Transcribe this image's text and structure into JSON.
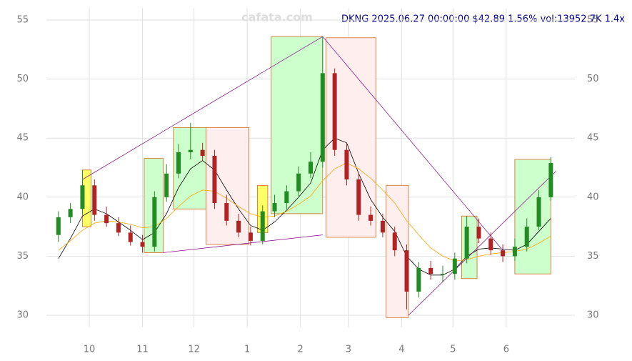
{
  "chart_data": {
    "type": "candlestick",
    "title": "DKNG 2025.06.27 00:00:00 $42.89 1.56% vol:13952.7K 1.4x",
    "watermark": "cafata.com",
    "x": [
      -18,
      -11,
      -4,
      3,
      10,
      17,
      24,
      31,
      38,
      45,
      52,
      59,
      66,
      73,
      80,
      87,
      94,
      101,
      108,
      115,
      122,
      129,
      136,
      143,
      150,
      157,
      164,
      171,
      178,
      185,
      192,
      199,
      206,
      213,
      220,
      227,
      234,
      241,
      248,
      255,
      262,
      269
    ],
    "open": [
      36.8,
      38.3,
      39.0,
      41.0,
      38.5,
      37.8,
      37.0,
      36.2,
      35.8,
      40.0,
      42.0,
      43.8,
      44.0,
      43.5,
      39.5,
      38.0,
      37.0,
      36.3,
      38.8,
      39.5,
      40.5,
      42.0,
      43.0,
      50.5,
      44.0,
      41.5,
      38.5,
      38.0,
      37.0,
      35.5,
      32.0,
      34.0,
      33.5,
      33.5,
      34.8,
      37.5,
      36.5,
      35.5,
      35.0,
      35.8,
      37.5,
      40.0
    ],
    "high": [
      38.8,
      39.5,
      42.3,
      41.5,
      39.2,
      38.3,
      37.6,
      36.8,
      40.5,
      42.8,
      44.5,
      46.3,
      44.6,
      44.0,
      40.2,
      38.6,
      37.5,
      39.3,
      40.2,
      41.0,
      42.6,
      43.8,
      53.6,
      50.9,
      44.6,
      42.0,
      39.2,
      38.6,
      37.5,
      36.0,
      34.5,
      34.6,
      34.2,
      35.3,
      38.4,
      38.2,
      37.0,
      36.0,
      36.5,
      38.2,
      40.6,
      43.4
    ],
    "low": [
      36.2,
      37.8,
      38.5,
      38.0,
      37.5,
      36.7,
      35.9,
      35.3,
      35.4,
      39.6,
      41.6,
      43.2,
      43.1,
      39.0,
      37.6,
      36.6,
      35.9,
      36.0,
      38.3,
      39.0,
      40.1,
      41.6,
      42.5,
      43.5,
      41.0,
      38.0,
      37.6,
      36.6,
      35.0,
      30.5,
      31.5,
      33.0,
      32.8,
      33.0,
      34.4,
      36.1,
      35.1,
      34.5,
      34.6,
      35.4,
      37.2,
      39.7
    ],
    "close": [
      38.3,
      39.0,
      41.0,
      38.5,
      37.8,
      37.0,
      36.2,
      35.8,
      40.0,
      42.0,
      43.8,
      44.0,
      43.5,
      39.5,
      38.0,
      37.0,
      36.3,
      38.8,
      39.5,
      40.5,
      42.0,
      43.0,
      50.5,
      44.0,
      41.5,
      38.5,
      38.0,
      37.0,
      35.5,
      32.0,
      34.0,
      33.5,
      33.5,
      34.8,
      37.5,
      36.5,
      35.5,
      35.0,
      35.8,
      37.5,
      40.0,
      42.89
    ],
    "up_color": "#228b22",
    "down_color": "#b22222",
    "series": [
      {
        "name": "MA",
        "color": "#000000",
        "values": [
          34.8,
          36.5,
          38.4,
          39.0,
          38.6,
          37.9,
          37.2,
          36.4,
          37.0,
          38.6,
          40.8,
          42.4,
          43.1,
          42.3,
          40.6,
          39.0,
          37.6,
          37.2,
          37.9,
          38.9,
          40.0,
          41.2,
          44.0,
          45.0,
          44.6,
          42.0,
          39.8,
          38.3,
          37.1,
          35.0,
          33.9,
          33.4,
          33.4,
          33.9,
          35.0,
          35.6,
          35.7,
          35.6,
          35.5,
          36.0,
          37.1,
          38.2
        ]
      },
      {
        "name": "MA2",
        "color": "#ffa500",
        "values": [
          35.5,
          36.3,
          37.2,
          37.8,
          38.0,
          37.9,
          37.7,
          37.4,
          37.5,
          38.2,
          39.2,
          40.1,
          40.6,
          40.5,
          39.9,
          39.2,
          38.6,
          38.3,
          38.4,
          38.8,
          39.4,
          40.1,
          41.4,
          42.4,
          42.9,
          42.4,
          41.6,
          40.6,
          39.5,
          38.0,
          36.8,
          35.7,
          35.0,
          34.6,
          34.7,
          35.0,
          35.2,
          35.3,
          35.4,
          35.6,
          36.1,
          36.7
        ]
      }
    ],
    "zones": [
      {
        "x": [
          -4,
          1
        ],
        "y": [
          37.5,
          42.3
        ],
        "color": "#ffff66"
      },
      {
        "x": [
          32,
          43
        ],
        "y": [
          35.3,
          43.3
        ],
        "color": "#ccffcc"
      },
      {
        "x": [
          49,
          68
        ],
        "y": [
          39.0,
          45.9
        ],
        "color": "#ccffcc"
      },
      {
        "x": [
          68,
          93
        ],
        "y": [
          36.0,
          45.9
        ],
        "color": "#ffeeee"
      },
      {
        "x": [
          98,
          104
        ],
        "y": [
          37.0,
          41.0
        ],
        "color": "#ffff66"
      },
      {
        "x": [
          106,
          136
        ],
        "y": [
          38.6,
          53.6
        ],
        "color": "#ccffcc"
      },
      {
        "x": [
          138,
          167
        ],
        "y": [
          36.6,
          53.5
        ],
        "color": "#ffeeee"
      },
      {
        "x": [
          173,
          186
        ],
        "y": [
          29.8,
          41.0
        ],
        "color": "#ffeeee"
      },
      {
        "x": [
          217,
          226
        ],
        "y": [
          33.1,
          38.4
        ],
        "color": "#ccffcc"
      },
      {
        "x": [
          248,
          269
        ],
        "y": [
          33.5,
          43.2
        ],
        "color": "#ccffcc"
      }
    ],
    "trend_lines": [
      {
        "color": "#800080",
        "points": [
          [
            -4,
            41.5
          ],
          [
            136,
            53.6
          ],
          [
            241,
            35.5
          ]
        ]
      },
      {
        "color": "#800080",
        "points": [
          [
            43,
            35.3
          ],
          [
            136,
            36.8
          ]
        ]
      },
      {
        "color": "#800080",
        "points": [
          [
            186,
            30.0
          ],
          [
            272,
            42.2
          ]
        ]
      }
    ],
    "xlim": [
      -25,
      283
    ],
    "ylim": [
      29,
      56
    ],
    "xticks": [
      {
        "value": 0,
        "label": "10"
      },
      {
        "value": 31,
        "label": "11"
      },
      {
        "value": 61,
        "label": "12"
      },
      {
        "value": 92,
        "label": "1"
      },
      {
        "value": 123,
        "label": "2"
      },
      {
        "value": 151,
        "label": "3"
      },
      {
        "value": 182,
        "label": "4"
      },
      {
        "value": 212,
        "label": "5"
      },
      {
        "value": 243,
        "label": "6"
      }
    ],
    "yticks": [
      30,
      35,
      40,
      45,
      50,
      55
    ],
    "grid": true
  }
}
